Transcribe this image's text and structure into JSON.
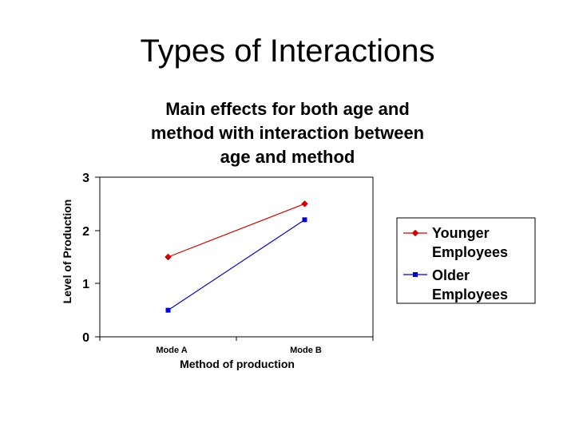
{
  "slide": {
    "title": "Types of Interactions"
  },
  "chart_data": {
    "type": "line",
    "title_lines": [
      "Main effects for both age and",
      "method with interaction between",
      "age and method"
    ],
    "xlabel": "Method of production",
    "ylabel": "Level of Production",
    "categories": [
      "Mode A",
      "Mode B"
    ],
    "ylim": [
      0,
      3
    ],
    "yticks": [
      "0",
      "1",
      "2",
      "3"
    ],
    "grid": false,
    "legend_position": "right",
    "series": [
      {
        "name_lines": [
          "Younger",
          "Employees"
        ],
        "values": [
          1.5,
          2.5
        ],
        "color": "#cc0000",
        "marker": "diamond"
      },
      {
        "name_lines": [
          "Older",
          "Employees"
        ],
        "values": [
          0.5,
          2.2
        ],
        "color": "#0000cc",
        "marker": "square"
      }
    ]
  }
}
